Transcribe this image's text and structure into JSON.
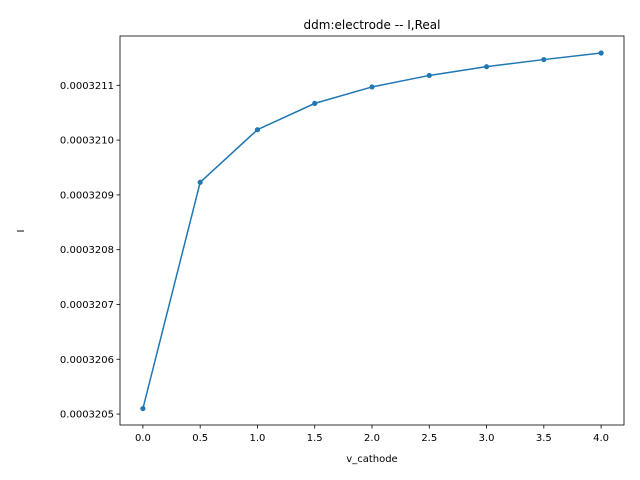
{
  "chart_data": {
    "type": "line",
    "title": "ddm:electrode -- I,Real",
    "xlabel": "v_cathode",
    "ylabel": "I",
    "xlim": [
      -0.2,
      4.2
    ],
    "ylim": [
      0.00032048,
      0.00032119
    ],
    "x_ticks": [
      "0.0",
      "0.5",
      "1.0",
      "1.5",
      "2.0",
      "2.5",
      "3.0",
      "3.5",
      "4.0"
    ],
    "y_ticks": [
      "0.0003205",
      "0.0003206",
      "0.0003207",
      "0.0003208",
      "0.0003209",
      "0.0003210",
      "0.0003211"
    ],
    "grid": false,
    "marker": "circle",
    "series": [
      {
        "color": "#1f77b4",
        "x": [
          0.0,
          0.5,
          1.0,
          1.5,
          2.0,
          2.5,
          3.0,
          3.5,
          4.0
        ],
        "y": [
          0.00032051,
          0.000320923,
          0.000321019,
          0.000321067,
          0.000321097,
          0.000321118,
          0.000321134,
          0.000321147,
          0.000321159
        ]
      }
    ]
  }
}
